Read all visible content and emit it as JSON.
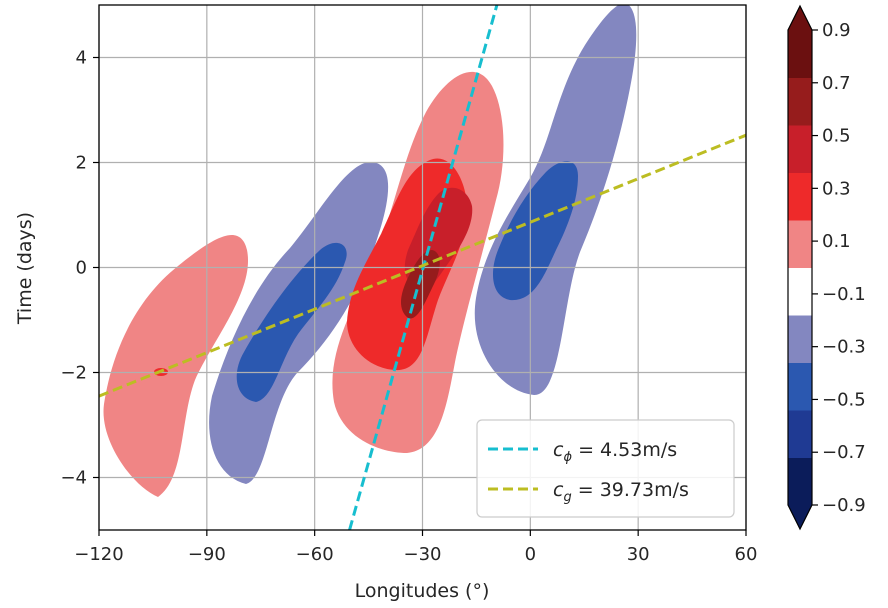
{
  "chart_data": {
    "type": "filled-contour",
    "xlabel": "Longitudes (°)",
    "ylabel": "Time (days)",
    "xlim": [
      -120,
      60
    ],
    "ylim": [
      -5,
      5
    ],
    "xticks": [
      -120,
      -90,
      -60,
      -30,
      0,
      30,
      60
    ],
    "yticks": [
      -4,
      -2,
      0,
      2,
      4
    ],
    "grid": true,
    "colorbar": {
      "levels": [
        -0.9,
        -0.7,
        -0.5,
        -0.3,
        -0.1,
        0.1,
        0.3,
        0.5,
        0.7,
        0.9
      ],
      "tick_labels": [
        "−0.9",
        "−0.7",
        "−0.5",
        "−0.3",
        "−0.1",
        "0.1",
        "0.3",
        "0.5",
        "0.7",
        "0.9"
      ],
      "colors": [
        "#0b1c5a",
        "#1f3a93",
        "#2b58b0",
        "#8387c0",
        "#ffffff",
        "#f08585",
        "#ee2a2a",
        "#c81f2a",
        "#961c1c",
        "#6b1010"
      ],
      "extend": "both"
    },
    "contour_regions": [
      {
        "color": "#f08585",
        "level": "0.1 to 0.3",
        "center": [
          -105,
          -1.8
        ],
        "axis_angle_deg": 55
      },
      {
        "color": "#8387c0",
        "level": "-0.3 to -0.1",
        "center": [
          -67,
          -0.9
        ],
        "axis_angle_deg": 55
      },
      {
        "color": "#2b58b0",
        "level": "-0.5 to -0.3",
        "center": [
          -65,
          -0.9
        ],
        "axis_angle_deg": 55
      },
      {
        "color": "#f08585",
        "level": "0.1 to 0.3",
        "center": [
          -30,
          -0.6
        ],
        "axis_angle_deg": 60
      },
      {
        "color": "#ee2a2a",
        "level": "0.3 to 0.5",
        "center": [
          -31,
          -0.1
        ],
        "axis_angle_deg": 60
      },
      {
        "color": "#c81f2a",
        "level": "0.5 to 0.7",
        "center": [
          -27,
          0.5
        ],
        "axis_angle_deg": 60
      },
      {
        "color": "#961c1c",
        "level": "0.7 to 0.9",
        "center": [
          -29,
          -0.3
        ],
        "axis_angle_deg": 60
      },
      {
        "color": "#8387c0",
        "level": "-0.3 to -0.1",
        "center": [
          8,
          1.1
        ],
        "axis_angle_deg": 60
      },
      {
        "color": "#2b58b0",
        "level": "-0.5 to -0.3",
        "center": [
          -2,
          0.7
        ],
        "axis_angle_deg": 60
      }
    ],
    "series": [
      {
        "name": "$c_\\phi = 4.53$m/s",
        "display_sub": "ϕ",
        "display_rest": " = 4.53m/s",
        "style": "dashed",
        "color": "#17becf",
        "x": [
          -50.3,
          -9.3
        ],
        "y": [
          -5,
          5
        ]
      },
      {
        "name": "$c_g = 39.73$m/s",
        "display_sub": "g",
        "display_rest": " = 39.73m/s",
        "style": "dashed",
        "color": "#bcbd22",
        "x": [
          -120,
          60
        ],
        "y": [
          -2.45,
          2.52
        ]
      }
    ],
    "legend_position": "lower-right"
  }
}
